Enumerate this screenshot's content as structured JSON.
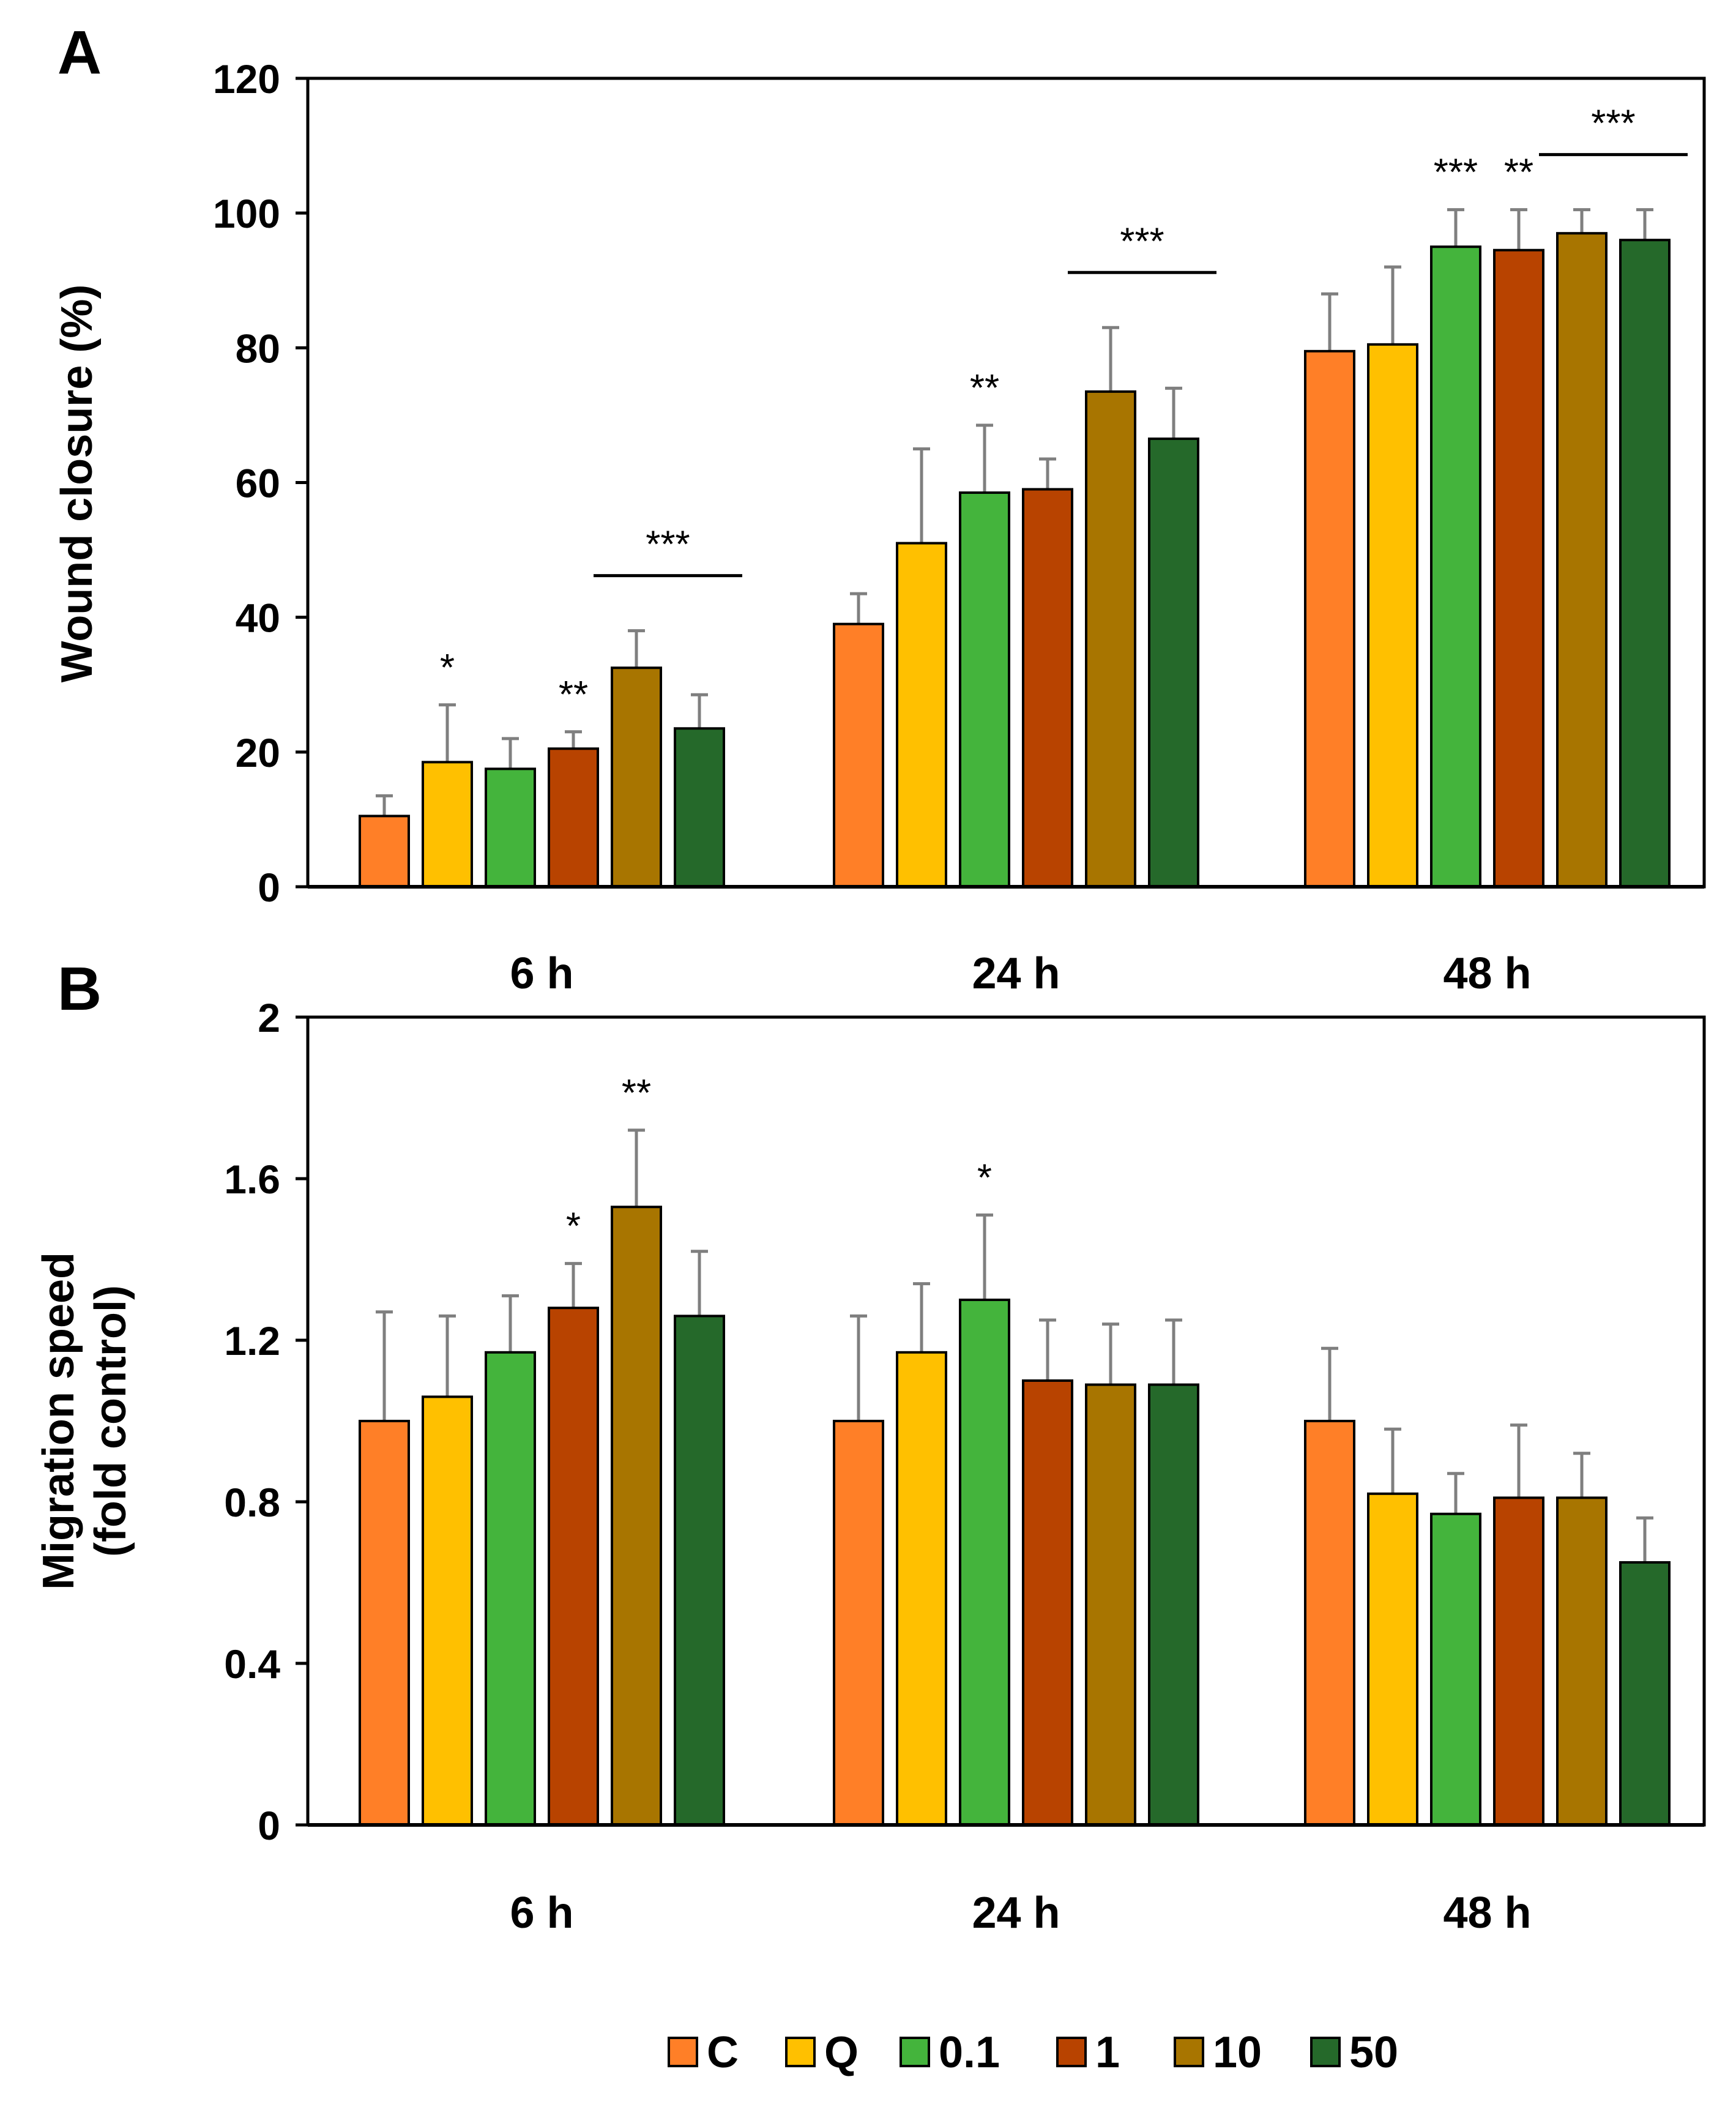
{
  "chart_data": [
    {
      "panel": "A",
      "type": "bar",
      "ylabel": "Wound closure (%)",
      "ylim": [
        0,
        120
      ],
      "yticks": [
        0,
        20,
        40,
        60,
        80,
        100,
        120
      ],
      "categories": [
        "6 h",
        "24 h",
        "48 h"
      ],
      "series": [
        {
          "name": "C",
          "color": "#FF7F27",
          "values": [
            10.5,
            39.0,
            79.5
          ],
          "errors": [
            3.0,
            4.5,
            8.5
          ]
        },
        {
          "name": "Q",
          "color": "#FFC000",
          "values": [
            18.5,
            51.0,
            80.5
          ],
          "errors": [
            8.5,
            14.0,
            11.5
          ]
        },
        {
          "name": "0.1",
          "color": "#44B43C",
          "values": [
            17.5,
            58.5,
            95.0
          ],
          "errors": [
            4.5,
            10.0,
            5.5
          ]
        },
        {
          "name": "1",
          "color": "#B84300",
          "values": [
            20.5,
            59.0,
            94.5
          ],
          "errors": [
            2.5,
            4.5,
            6.0
          ]
        },
        {
          "name": "10",
          "color": "#A87500",
          "values": [
            32.5,
            73.5,
            97.0
          ],
          "errors": [
            5.5,
            9.5,
            3.5
          ]
        },
        {
          "name": "50",
          "color": "#25692A",
          "values": [
            23.5,
            66.5,
            96.0
          ],
          "errors": [
            5.0,
            7.5,
            4.5
          ]
        }
      ],
      "annotations": [
        {
          "text": "*",
          "group": 0,
          "series": 1
        },
        {
          "text": "**",
          "group": 0,
          "series": 3
        },
        {
          "text": "***",
          "group": 0,
          "from_series": 4,
          "to_series": 5
        },
        {
          "text": "**",
          "group": 1,
          "series": 2
        },
        {
          "text": "***",
          "group": 1,
          "from_series": 4,
          "to_series": 5
        },
        {
          "text": "***",
          "group": 2,
          "series": 2
        },
        {
          "text": "**",
          "group": 2,
          "series": 3
        },
        {
          "text": "***",
          "group": 2,
          "from_series": 4,
          "to_series": 5
        }
      ]
    },
    {
      "panel": "B",
      "type": "bar",
      "ylabel_lines": [
        "Migration speed",
        "(fold control)"
      ],
      "ylim": [
        0,
        2
      ],
      "yticks": [
        "0",
        "0.4",
        "0.8",
        "1.2",
        "1.6",
        "2"
      ],
      "categories": [
        "6 h",
        "24 h",
        "48 h"
      ],
      "series": [
        {
          "name": "C",
          "color": "#FF7F27",
          "values": [
            1.0,
            1.0,
            1.0
          ],
          "errors": [
            0.27,
            0.26,
            0.18
          ]
        },
        {
          "name": "Q",
          "color": "#FFC000",
          "values": [
            1.06,
            1.17,
            0.82
          ],
          "errors": [
            0.2,
            0.17,
            0.16
          ]
        },
        {
          "name": "0.1",
          "color": "#44B43C",
          "values": [
            1.17,
            1.3,
            0.77
          ],
          "errors": [
            0.14,
            0.21,
            0.1
          ]
        },
        {
          "name": "1",
          "color": "#B84300",
          "values": [
            1.28,
            1.1,
            0.81
          ],
          "errors": [
            0.11,
            0.15,
            0.18
          ]
        },
        {
          "name": "10",
          "color": "#A87500",
          "values": [
            1.53,
            1.09,
            0.81
          ],
          "errors": [
            0.19,
            0.15,
            0.11
          ]
        },
        {
          "name": "50",
          "color": "#25692A",
          "values": [
            1.26,
            1.09,
            0.65
          ],
          "errors": [
            0.16,
            0.16,
            0.11
          ]
        }
      ],
      "annotations": [
        {
          "text": "*",
          "group": 0,
          "series": 3
        },
        {
          "text": "**",
          "group": 0,
          "series": 4
        },
        {
          "text": "*",
          "group": 1,
          "series": 2
        }
      ]
    }
  ],
  "legend": {
    "position": "bottom-center",
    "entries": [
      {
        "label": "C",
        "color": "#FF7F27"
      },
      {
        "label": "Q",
        "color": "#FFC000"
      },
      {
        "label": "0.1",
        "color": "#44B43C"
      },
      {
        "label": "1",
        "color": "#B84300"
      },
      {
        "label": "10",
        "color": "#A87500"
      },
      {
        "label": "50",
        "color": "#25692A"
      }
    ]
  }
}
